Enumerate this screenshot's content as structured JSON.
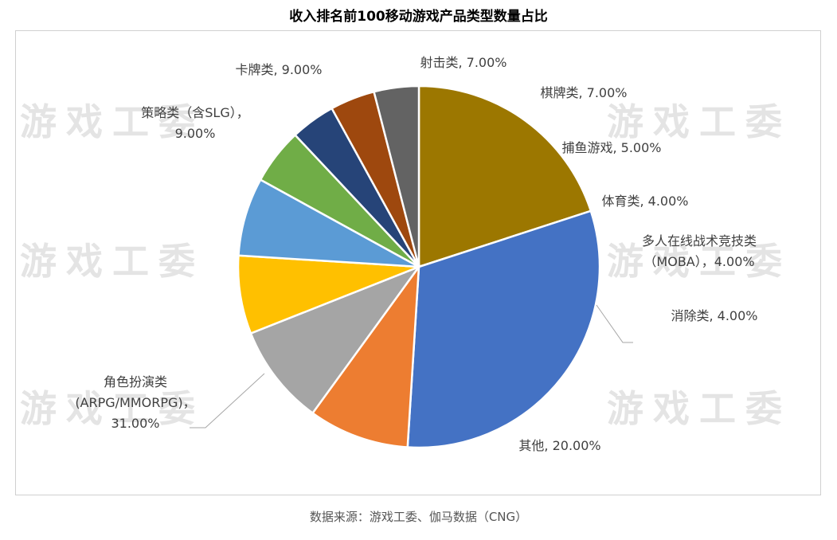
{
  "chart_data": {
    "type": "pie",
    "title": "收入排名前100移动游戏产品类型数量占比",
    "start_angle_deg": 0,
    "direction": "clockwise",
    "slices": [
      {
        "label_lines": [
          "其他, 20.00%"
        ],
        "value": 20.0,
        "color": "#9c7700"
      },
      {
        "label_lines": [
          "角色扮演类",
          "(ARPG/MMORPG)，",
          "31.00%"
        ],
        "value": 31.0,
        "color": "#4472c4"
      },
      {
        "label_lines": [
          "策略类（含SLG），",
          "9.00%"
        ],
        "value": 9.0,
        "color": "#ed7d31"
      },
      {
        "label_lines": [
          "卡牌类, 9.00%"
        ],
        "value": 9.0,
        "color": "#a5a5a5"
      },
      {
        "label_lines": [
          "射击类, 7.00%"
        ],
        "value": 7.0,
        "color": "#ffc000"
      },
      {
        "label_lines": [
          "棋牌类, 7.00%"
        ],
        "value": 7.0,
        "color": "#5b9bd5"
      },
      {
        "label_lines": [
          "捕鱼游戏, 5.00%"
        ],
        "value": 5.0,
        "color": "#70ad47"
      },
      {
        "label_lines": [
          "体育类, 4.00%"
        ],
        "value": 4.0,
        "color": "#264478"
      },
      {
        "label_lines": [
          "多人在线战术竞技类",
          "（MOBA），4.00%"
        ],
        "value": 4.0,
        "color": "#9e480e"
      },
      {
        "label_lines": [
          "消除类, 4.00%"
        ],
        "value": 4.0,
        "color": "#636363"
      }
    ]
  },
  "watermark": "游戏工委",
  "source": "数据来源：游戏工委、伽马数据（CNG）"
}
